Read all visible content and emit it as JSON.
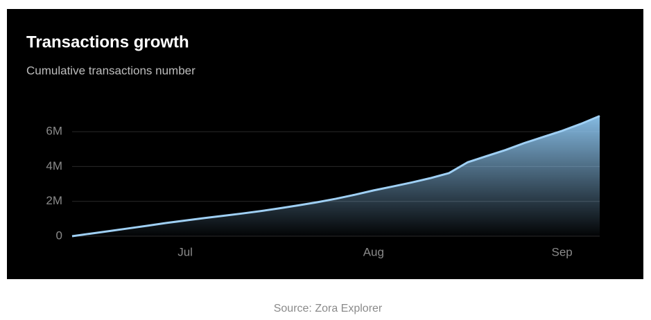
{
  "chart_data": {
    "type": "area",
    "title": "Transactions growth",
    "subtitle": "Cumulative transactions number",
    "source": "Source: Zora Explorer",
    "categories": [
      null,
      null,
      null,
      null,
      null,
      null,
      "Jul",
      null,
      null,
      null,
      null,
      null,
      null,
      null,
      null,
      null,
      "Aug",
      null,
      null,
      null,
      null,
      null,
      null,
      null,
      null,
      null,
      "Sep",
      null,
      null
    ],
    "values": [
      0,
      150000,
      300000,
      450000,
      600000,
      760000,
      900000,
      1040000,
      1170000,
      1300000,
      1440000,
      1600000,
      1770000,
      1950000,
      2150000,
      2380000,
      2630000,
      2850000,
      3080000,
      3330000,
      3620000,
      4250000,
      4600000,
      4950000,
      5350000,
      5700000,
      6050000,
      6450000,
      6900000
    ],
    "color": "#9fd0f5",
    "ylim": [
      0,
      7000000
    ],
    "yticks": [
      0,
      {
        "value": 2000000,
        "label": "2M"
      },
      {
        "value": 4000000,
        "label": "4M"
      },
      {
        "value": 6000000,
        "label": "6M"
      }
    ],
    "grid": true
  }
}
